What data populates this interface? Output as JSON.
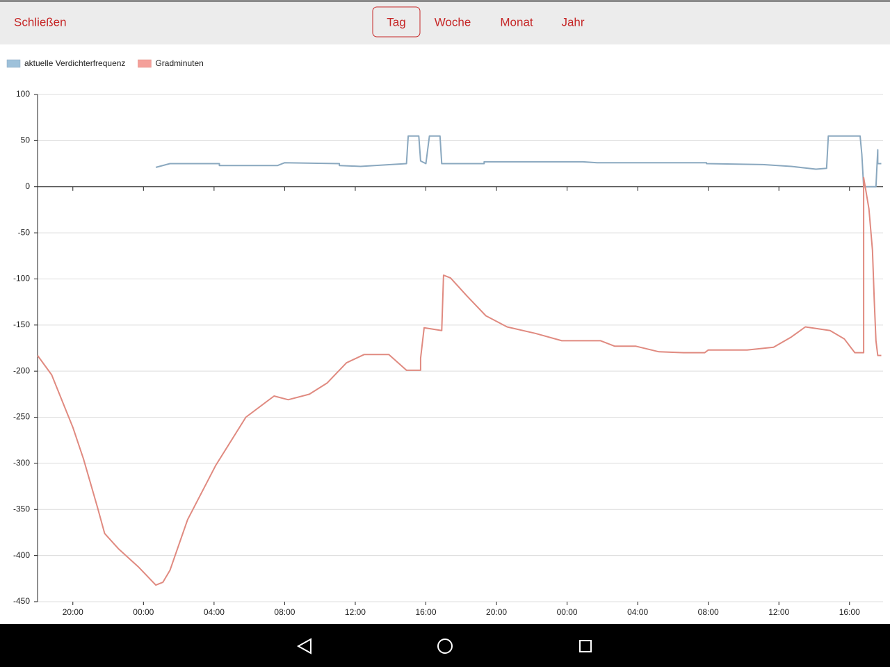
{
  "header": {
    "close": "Schließen",
    "tabs": [
      "Tag",
      "Woche",
      "Monat",
      "Jahr"
    ],
    "selected_tab": "Tag"
  },
  "chart_data": {
    "type": "line",
    "series": [
      {
        "name": "aktuelle Verdichterfrequenz",
        "color": "#8aa8bf",
        "legend_color": "#9ec1da",
        "x": [
          24.7,
          25.5,
          28.3,
          28.3,
          31.6,
          32,
          35.1,
          35.1,
          36.3,
          37.1,
          38.9,
          39.0,
          39.6,
          39.7,
          40,
          40.2,
          40.8,
          40.9,
          43.3,
          43.3,
          48.9,
          49.7,
          51.3,
          55.9,
          55.9,
          59.1,
          60.7,
          62.1,
          62.7,
          62.8,
          64.6,
          64.7,
          64.8,
          65.5,
          65.6,
          65.6,
          65.8
        ],
        "values": [
          21,
          25,
          25,
          23,
          23,
          26,
          25,
          23,
          22,
          23,
          25,
          55,
          55,
          28,
          25,
          55,
          55,
          25,
          25,
          27,
          27,
          26,
          26,
          26,
          25,
          24,
          22,
          19,
          20,
          55,
          55,
          35,
          0,
          0,
          40,
          25,
          25
        ]
      },
      {
        "name": "Gradminuten",
        "color": "#e08a80",
        "legend_color": "#f4a09a",
        "x": [
          18.0,
          18.8,
          19.6,
          20,
          20.6,
          21.4,
          21.8,
          22.6,
          23.7,
          24.7,
          25.1,
          25.5,
          26.5,
          28.1,
          29.8,
          31.4,
          32.2,
          33.4,
          34.4,
          35.5,
          36.5,
          37.9,
          38.9,
          39.7,
          39.7,
          39.9,
          40.9,
          41.0,
          41.4,
          42.3,
          43.4,
          44.6,
          46.2,
          47.7,
          49.9,
          50.7,
          51.9,
          53.2,
          54.6,
          55.8,
          56,
          58.2,
          59.7,
          60.7,
          61.5,
          62.9,
          63.7,
          64.3,
          64.8,
          64.8,
          65.1,
          65.3,
          65.4,
          65.5,
          65.6,
          65.8
        ],
        "values": [
          -183,
          -204,
          -242,
          -261,
          -295,
          -348,
          -376,
          -393,
          -412,
          -432,
          -429,
          -416,
          -361,
          -302,
          -250,
          -227,
          -231,
          -225,
          -213,
          -191,
          -182,
          -182,
          -199,
          -199,
          -186,
          -153,
          -156,
          -96,
          -99,
          -118,
          -140,
          -152,
          -159,
          -167,
          -167,
          -173,
          -173,
          -179,
          -180,
          -180,
          -177,
          -177,
          -174,
          -163,
          -152,
          -156,
          -165,
          -180,
          -180,
          10,
          -24,
          -69,
          -122,
          -167,
          -183,
          -183
        ]
      }
    ],
    "xlim": [
      18,
      65.9
    ],
    "xticks": [
      {
        "value": 20,
        "label": "20:00"
      },
      {
        "value": 24,
        "label": "00:00"
      },
      {
        "value": 28,
        "label": "04:00"
      },
      {
        "value": 32,
        "label": "08:00"
      },
      {
        "value": 36,
        "label": "12:00"
      },
      {
        "value": 40,
        "label": "16:00"
      },
      {
        "value": 44,
        "label": "20:00"
      },
      {
        "value": 48,
        "label": "00:00"
      },
      {
        "value": 52,
        "label": "04:00"
      },
      {
        "value": 56,
        "label": "08:00"
      },
      {
        "value": 60,
        "label": "12:00"
      },
      {
        "value": 64,
        "label": "16:00"
      }
    ],
    "ylim": [
      -450,
      100
    ],
    "yticks": [
      100,
      50,
      0,
      -50,
      -100,
      -150,
      -200,
      -250,
      -300,
      -350,
      -400,
      -450
    ],
    "grid": true
  }
}
